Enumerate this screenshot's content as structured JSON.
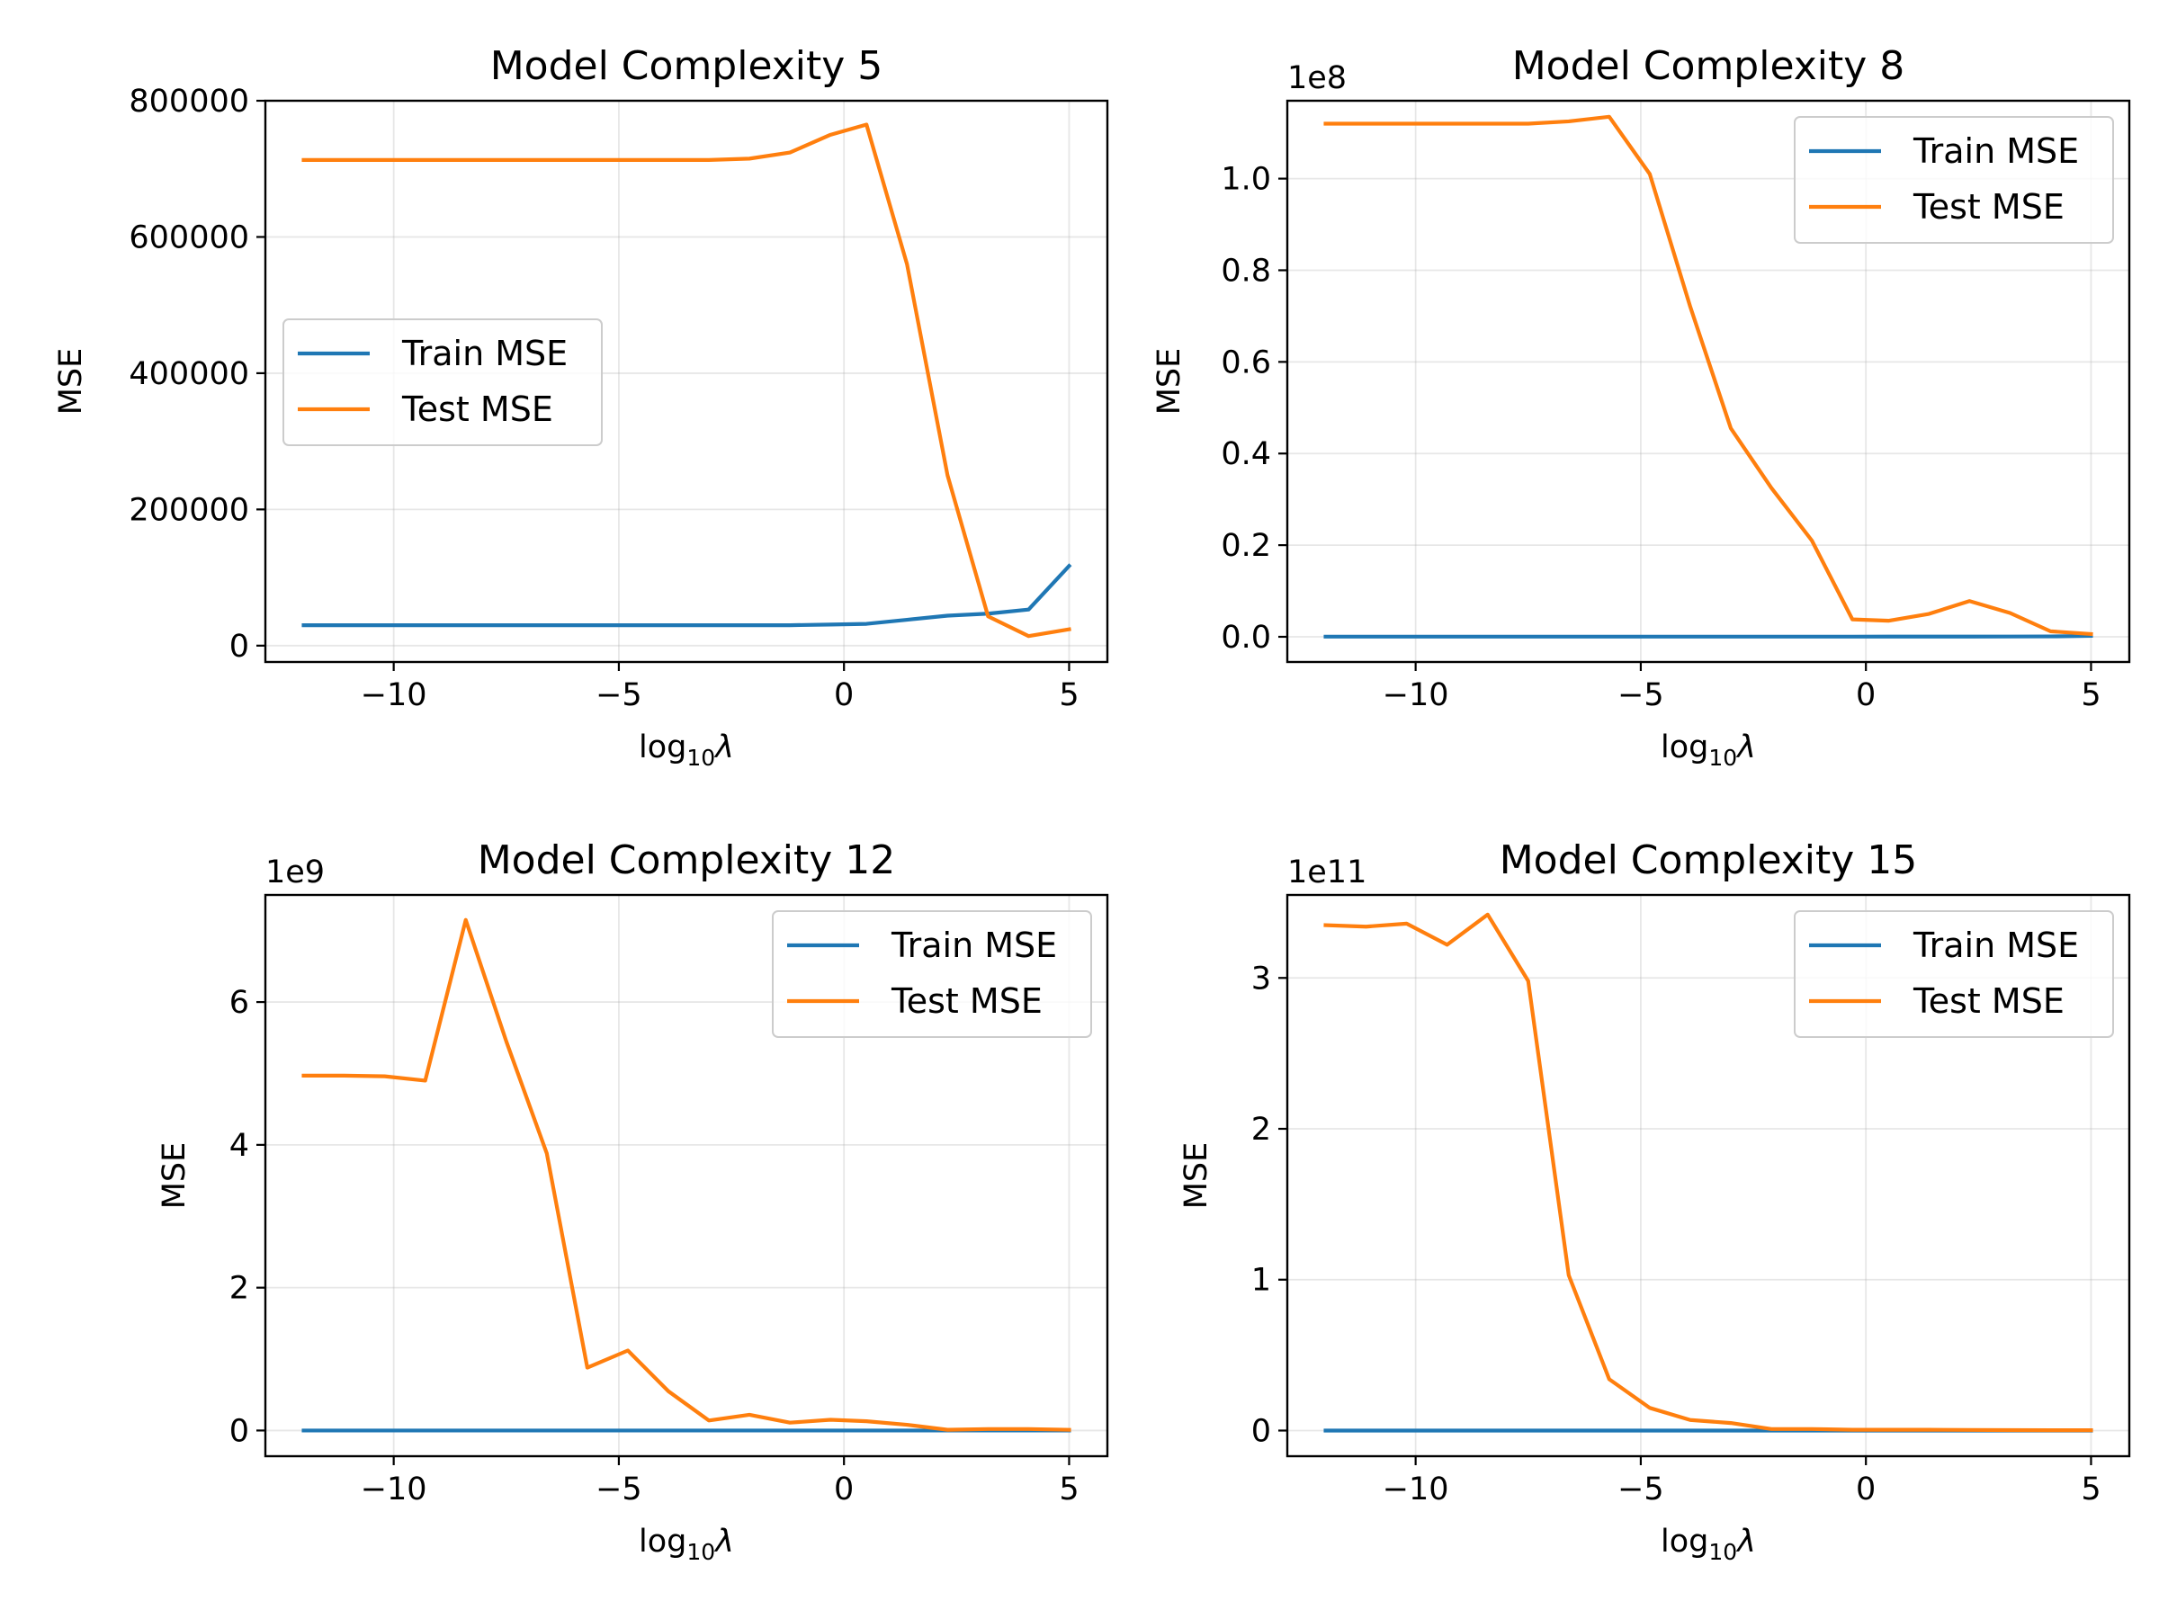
{
  "chart_data": [
    {
      "type": "line",
      "title": "Model Complexity 5",
      "xlabel": "log",
      "xlabel_sub": "10",
      "xlabel_sym": "λ",
      "ylabel": "MSE",
      "y_offset_text": "",
      "y_scale": 1,
      "xlim": [
        -12.85,
        5.85
      ],
      "ylim": [
        -24000,
        800000
      ],
      "xticks": [
        -10,
        -5,
        0,
        5
      ],
      "xtick_labels": [
        "−10",
        "−5",
        "0",
        "5"
      ],
      "yticks": [
        0,
        200000,
        400000,
        600000,
        800000
      ],
      "ytick_labels": [
        "0",
        "200000",
        "400000",
        "600000",
        "800000"
      ],
      "grid": true,
      "legend_position": "center-left",
      "x": [
        -12,
        -11.1,
        -10.2,
        -9.3,
        -8.4,
        -7.5,
        -6.6,
        -5.7,
        -4.8,
        -3.9,
        -3.0,
        -2.1,
        -1.2,
        -0.3,
        0.5,
        1.4,
        2.3,
        3.2,
        4.1,
        5
      ],
      "series": [
        {
          "name": "Train MSE",
          "color": "#1f77b4",
          "values": [
            30000,
            30000,
            30000,
            30000,
            30000,
            30000,
            30000,
            30000,
            30000,
            30000,
            30000,
            30000,
            30000,
            31000,
            32000,
            38000,
            44000,
            47000,
            53000,
            117000
          ]
        },
        {
          "name": "Test MSE",
          "color": "#ff7f0e",
          "values": [
            713000,
            713000,
            713000,
            713000,
            713000,
            713000,
            713000,
            713000,
            713000,
            713000,
            713000,
            715000,
            724000,
            750000,
            765000,
            560000,
            250000,
            43000,
            14000,
            24000
          ]
        }
      ]
    },
    {
      "type": "line",
      "title": "Model Complexity 8",
      "xlabel": "log",
      "xlabel_sub": "10",
      "xlabel_sym": "λ",
      "ylabel": "MSE",
      "y_offset_text": "1e8",
      "y_scale": 100000000.0,
      "xlim": [
        -12.85,
        5.85
      ],
      "ylim": [
        -0.055,
        1.17
      ],
      "xticks": [
        -10,
        -5,
        0,
        5
      ],
      "xtick_labels": [
        "−10",
        "−5",
        "0",
        "5"
      ],
      "yticks": [
        0.0,
        0.2,
        0.4,
        0.6,
        0.8,
        1.0
      ],
      "ytick_labels": [
        "0.0",
        "0.2",
        "0.4",
        "0.6",
        "0.8",
        "1.0"
      ],
      "grid": true,
      "legend_position": "top-right",
      "x": [
        -12,
        -11.1,
        -10.2,
        -9.3,
        -8.4,
        -7.5,
        -6.6,
        -5.7,
        -4.8,
        -3.9,
        -3.0,
        -2.1,
        -1.2,
        -0.3,
        0.5,
        1.4,
        2.3,
        3.2,
        4.1,
        5
      ],
      "series": [
        {
          "name": "Train MSE",
          "color": "#1f77b4",
          "values": [
            0.0003,
            0.0003,
            0.0003,
            0.0003,
            0.0003,
            0.0003,
            0.0003,
            0.0003,
            0.0003,
            0.0003,
            0.0003,
            0.0003,
            0.0003,
            0.0003,
            0.0004,
            0.0004,
            0.0005,
            0.0006,
            0.0008,
            0.002
          ]
        },
        {
          "name": "Test MSE",
          "color": "#ff7f0e",
          "values": [
            1.12,
            1.12,
            1.12,
            1.12,
            1.12,
            1.12,
            1.125,
            1.135,
            1.01,
            0.72,
            0.455,
            0.325,
            0.21,
            0.038,
            0.035,
            0.05,
            0.078,
            0.052,
            0.012,
            0.006
          ]
        }
      ]
    },
    {
      "type": "line",
      "title": "Model Complexity 12",
      "xlabel": "log",
      "xlabel_sub": "10",
      "xlabel_sym": "λ",
      "ylabel": "MSE",
      "y_offset_text": "1e9",
      "y_scale": 1000000000.0,
      "xlim": [
        -12.85,
        5.85
      ],
      "ylim": [
        -0.36,
        7.5
      ],
      "xticks": [
        -10,
        -5,
        0,
        5
      ],
      "xtick_labels": [
        "−10",
        "−5",
        "0",
        "5"
      ],
      "yticks": [
        0,
        2,
        4,
        6
      ],
      "ytick_labels": [
        "0",
        "2",
        "4",
        "6"
      ],
      "grid": true,
      "legend_position": "top-right",
      "x": [
        -12,
        -11.1,
        -10.2,
        -9.3,
        -8.4,
        -7.5,
        -6.6,
        -5.7,
        -4.8,
        -3.9,
        -3.0,
        -2.1,
        -1.2,
        -0.3,
        0.5,
        1.4,
        2.3,
        3.2,
        4.1,
        5
      ],
      "series": [
        {
          "name": "Train MSE",
          "color": "#1f77b4",
          "values": [
            0,
            0,
            0,
            0,
            0,
            0,
            0,
            0,
            0,
            0,
            0,
            0,
            0,
            0,
            0,
            0,
            0,
            0,
            0,
            0
          ]
        },
        {
          "name": "Test MSE",
          "color": "#ff7f0e",
          "values": [
            4.97,
            4.97,
            4.96,
            4.9,
            7.15,
            5.45,
            3.88,
            0.88,
            1.12,
            0.55,
            0.14,
            0.22,
            0.11,
            0.15,
            0.13,
            0.08,
            0.01,
            0.02,
            0.02,
            0.01
          ]
        }
      ]
    },
    {
      "type": "line",
      "title": "Model Complexity 15",
      "xlabel": "log",
      "xlabel_sub": "10",
      "xlabel_sym": "λ",
      "ylabel": "MSE",
      "y_offset_text": "1e11",
      "y_scale": 100000000000.0,
      "xlim": [
        -12.85,
        5.85
      ],
      "ylim": [
        -0.17,
        3.55
      ],
      "xticks": [
        -10,
        -5,
        0,
        5
      ],
      "xtick_labels": [
        "−10",
        "−5",
        "0",
        "5"
      ],
      "yticks": [
        0,
        1,
        2,
        3
      ],
      "ytick_labels": [
        "0",
        "1",
        "2",
        "3"
      ],
      "grid": true,
      "legend_position": "top-right",
      "x": [
        -12,
        -11.1,
        -10.2,
        -9.3,
        -8.4,
        -7.5,
        -6.6,
        -5.7,
        -4.8,
        -3.9,
        -3.0,
        -2.1,
        -1.2,
        -0.3,
        0.5,
        1.4,
        2.3,
        3.2,
        4.1,
        5
      ],
      "series": [
        {
          "name": "Train MSE",
          "color": "#1f77b4",
          "values": [
            0,
            0,
            0,
            0,
            0,
            0,
            0,
            0,
            0,
            0,
            0,
            0,
            0,
            0,
            0,
            0,
            0,
            0,
            0,
            0
          ]
        },
        {
          "name": "Test MSE",
          "color": "#ff7f0e",
          "values": [
            3.35,
            3.34,
            3.36,
            3.22,
            3.42,
            2.98,
            1.03,
            0.34,
            0.15,
            0.07,
            0.05,
            0.01,
            0.01,
            0.005,
            0.005,
            0.005,
            0.004,
            0.003,
            0.002,
            0.002
          ]
        }
      ]
    }
  ]
}
